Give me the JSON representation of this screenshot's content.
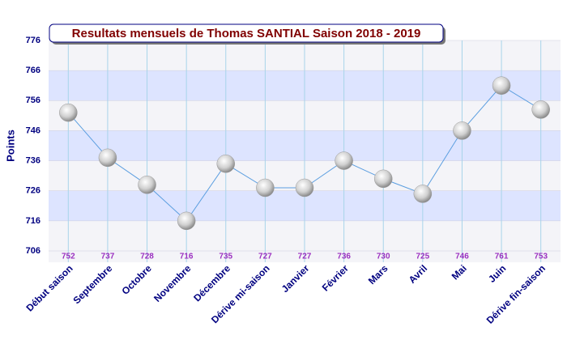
{
  "chart_data": {
    "type": "line",
    "title": "Resultats mensuels de Thomas SANTIAL Saison 2018 - 2019",
    "y_label": "Points",
    "categories": [
      "Début saison",
      "Septembre",
      "Octobre",
      "Novembre",
      "Décembre",
      "Dérive mi-saison",
      "Janvier",
      "Février",
      "Mars",
      "Avril",
      "Mai",
      "Juin",
      "Dérive fin-saison"
    ],
    "values": [
      752,
      737,
      728,
      716,
      735,
      727,
      727,
      736,
      730,
      725,
      746,
      761,
      753
    ],
    "color": "#5b9ee0",
    "ylim": [
      706,
      776
    ],
    "yticks": [
      706,
      716,
      726,
      736,
      746,
      756,
      766,
      776
    ],
    "grid": true
  }
}
